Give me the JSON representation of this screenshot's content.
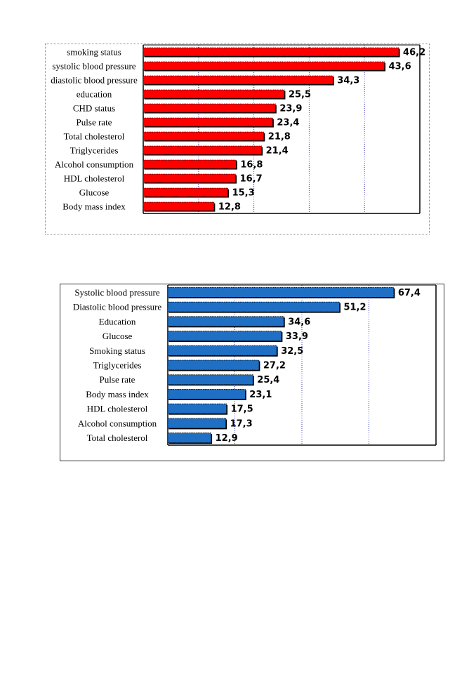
{
  "chart_data": [
    {
      "type": "bar",
      "orientation": "horizontal",
      "title": "",
      "xlabel": "",
      "ylabel": "",
      "bar_color": "#ff0000",
      "grid": "vertical dotted",
      "xlim": [
        0,
        50
      ],
      "categories": [
        "smoking status",
        "systolic blood pressure",
        "diastolic blood pressure",
        "education",
        "CHD status",
        "Pulse rate",
        "Total cholesterol",
        "Triglycerides",
        "Alcohol consumption",
        "HDL cholesterol",
        "Glucose",
        "Body mass index"
      ],
      "values": [
        46.2,
        43.6,
        34.3,
        25.5,
        23.9,
        23.4,
        21.8,
        21.4,
        16.8,
        16.7,
        15.3,
        12.8
      ],
      "value_labels": [
        "46,2",
        "43,6",
        "34,3",
        "25,5",
        "23,9",
        "23,4",
        "21,8",
        "21,4",
        "16,8",
        "16,7",
        "15,3",
        "12,8"
      ]
    },
    {
      "type": "bar",
      "orientation": "horizontal",
      "title": "",
      "xlabel": "",
      "ylabel": "",
      "bar_color": "#1f6fc4",
      "grid": "vertical dotted",
      "xlim": [
        0,
        80
      ],
      "categories": [
        "Systolic blood pressure",
        "Diastolic blood pressure",
        "Education",
        "Glucose",
        "Smoking status",
        "Triglycerides",
        "Pulse rate",
        "Body mass index",
        "HDL cholesterol",
        "Alcohol consumption",
        "Total cholesterol"
      ],
      "values": [
        67.4,
        51.2,
        34.6,
        33.9,
        32.5,
        27.2,
        25.4,
        23.1,
        17.5,
        17.3,
        12.9
      ],
      "value_labels": [
        "67,4",
        "51,2",
        "34,6",
        "33,9",
        "32,5",
        "27,2",
        "25,4",
        "23,1",
        "17,5",
        "17,3",
        "12,9"
      ]
    }
  ]
}
